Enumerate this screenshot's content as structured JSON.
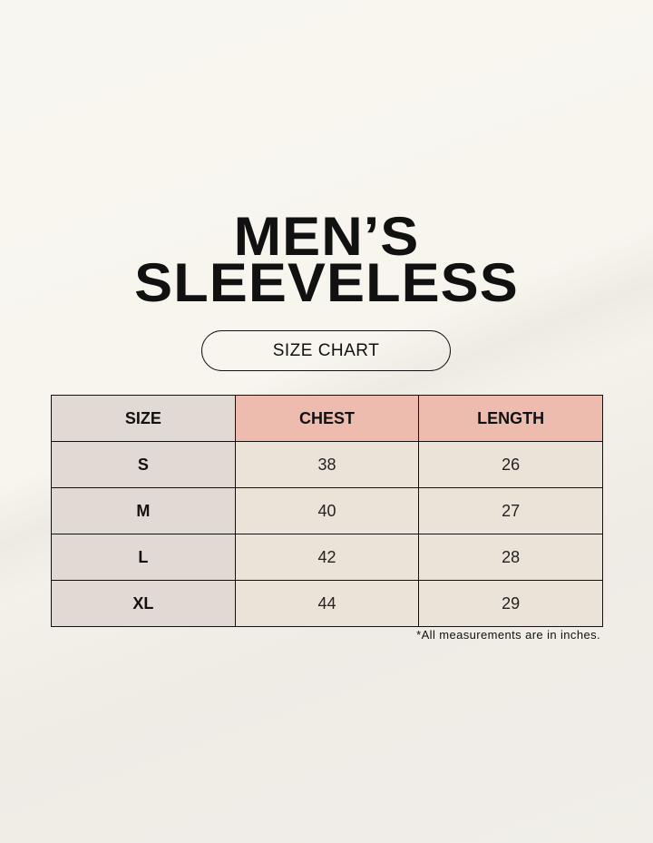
{
  "title": {
    "line1": "MEN’S",
    "line2": "SLEEVELESS"
  },
  "badge": "SIZE CHART",
  "table": {
    "headers": [
      "SIZE",
      "CHEST",
      "LENGTH"
    ],
    "rows": [
      [
        "S",
        "38",
        "26"
      ],
      [
        "M",
        "40",
        "27"
      ],
      [
        "L",
        "42",
        "28"
      ],
      [
        "XL",
        "44",
        "29"
      ]
    ]
  },
  "note": "*All measurements are in inches.",
  "colors": {
    "header_accent": "#edbcae",
    "size_column": "#e0d9d4",
    "cell": "#ebe3d8"
  }
}
